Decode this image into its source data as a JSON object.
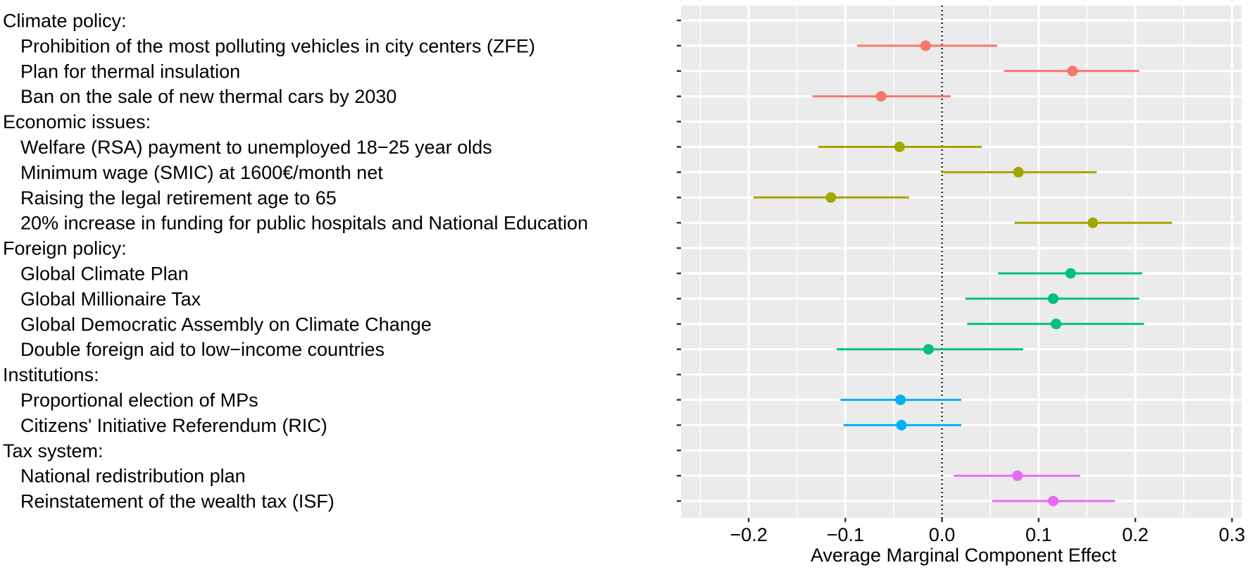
{
  "chart_data": {
    "type": "scatter",
    "subtype": "coefficient plot with 95% confidence intervals",
    "xlabel": "Average Marginal Component Effect",
    "xlim": [
      -0.27,
      0.31
    ],
    "x_ticks": [
      -0.2,
      -0.1,
      0.0,
      0.1,
      0.2,
      0.3
    ],
    "x_tick_labels": [
      "−0.2",
      "−0.1",
      "0.0",
      "0.1",
      "0.2",
      "0.3"
    ],
    "reference_line": {
      "x": 0,
      "style": "dotted",
      "color": "#000000"
    },
    "grid": true,
    "legend": "none",
    "rows": [
      {
        "label": "Climate policy:",
        "header": true
      },
      {
        "label": "Prohibition of the most polluting vehicles in city centers (ZFE)",
        "group": "Climate policy",
        "estimate": -0.017,
        "ci": [
          -0.088,
          0.057
        ]
      },
      {
        "label": "Plan for thermal insulation",
        "group": "Climate policy",
        "estimate": 0.135,
        "ci": [
          0.064,
          0.204
        ]
      },
      {
        "label": "Ban on the sale of new thermal cars by 2030",
        "group": "Climate policy",
        "estimate": -0.063,
        "ci": [
          -0.134,
          0.009
        ]
      },
      {
        "label": "Economic issues:",
        "header": true
      },
      {
        "label": "Welfare (RSA) payment to unemployed 18−25 year olds",
        "group": "Economic issues",
        "estimate": -0.044,
        "ci": [
          -0.128,
          0.041
        ]
      },
      {
        "label": "Minimum wage (SMIC) at 1600€/month net",
        "group": "Economic issues",
        "estimate": 0.079,
        "ci": [
          -0.001,
          0.16
        ]
      },
      {
        "label": "Raising the legal retirement age to 65",
        "group": "Economic issues",
        "estimate": -0.115,
        "ci": [
          -0.195,
          -0.034
        ]
      },
      {
        "label": "20% increase in funding for public hospitals and National Education",
        "group": "Economic issues",
        "estimate": 0.156,
        "ci": [
          0.075,
          0.238
        ]
      },
      {
        "label": "Foreign policy:",
        "header": true
      },
      {
        "label": "Global Climate Plan",
        "group": "Foreign policy",
        "estimate": 0.133,
        "ci": [
          0.058,
          0.207
        ]
      },
      {
        "label": "Global Millionaire Tax",
        "group": "Foreign policy",
        "estimate": 0.115,
        "ci": [
          0.024,
          0.204
        ]
      },
      {
        "label": "Global Democratic Assembly on Climate Change",
        "group": "Foreign policy",
        "estimate": 0.118,
        "ci": [
          0.026,
          0.209
        ]
      },
      {
        "label": "Double foreign aid to low−income countries",
        "group": "Foreign policy",
        "estimate": -0.014,
        "ci": [
          -0.109,
          0.084
        ]
      },
      {
        "label": "Institutions:",
        "header": true
      },
      {
        "label": "Proportional election of MPs",
        "group": "Institutions",
        "estimate": -0.043,
        "ci": [
          -0.105,
          0.02
        ]
      },
      {
        "label": "Citizens' Initiative Referendum (RIC)",
        "group": "Institutions",
        "estimate": -0.042,
        "ci": [
          -0.102,
          0.02
        ]
      },
      {
        "label": "Tax system:",
        "header": true
      },
      {
        "label": "National redistribution plan",
        "group": "Tax system",
        "estimate": 0.078,
        "ci": [
          0.012,
          0.143
        ]
      },
      {
        "label": "Reinstatement of the wealth tax (ISF)",
        "group": "Tax system",
        "estimate": 0.115,
        "ci": [
          0.052,
          0.179
        ]
      }
    ],
    "group_colors": {
      "Climate policy": "#F8766D",
      "Economic issues": "#A3A500",
      "Foreign policy": "#00BF7D",
      "Institutions": "#00B0F6",
      "Tax system": "#E76BF3"
    }
  }
}
